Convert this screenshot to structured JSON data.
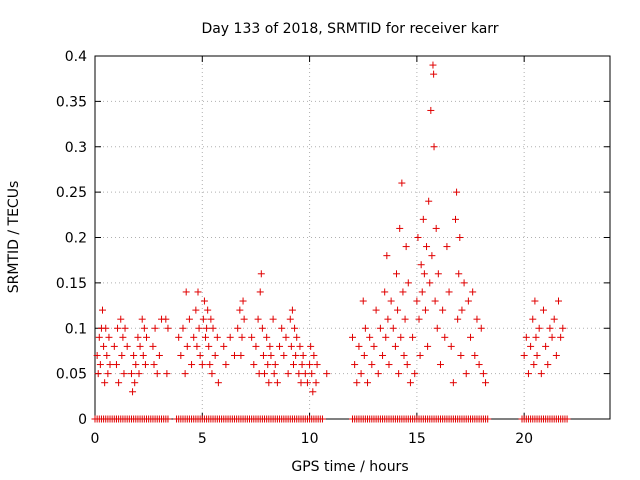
{
  "chart_data": {
    "type": "scatter",
    "title": "Day 133 of 2018, SRMTID for receiver karr",
    "xlabel": "GPS time / hours",
    "ylabel": "SRMTID / TECUs",
    "xlim": [
      0,
      24
    ],
    "ylim": [
      0,
      0.4
    ],
    "x_ticks": [
      0,
      5,
      10,
      15,
      20
    ],
    "x_tick_labels": [
      "0",
      "5",
      "10",
      "15",
      "20"
    ],
    "y_ticks": [
      0,
      0.05,
      0.1,
      0.15,
      0.2,
      0.25,
      0.3,
      0.35,
      0.4
    ],
    "y_tick_labels": [
      "0",
      "0.05",
      "0.1",
      "0.15",
      "0.2",
      "0.25",
      "0.3",
      "0.35",
      "0.4"
    ],
    "grid": true,
    "marker": "+",
    "marker_color": "#e00000",
    "series": [
      {
        "name": "SRMTID",
        "points": [
          [
            0.1,
            0.07
          ],
          [
            0.15,
            0.05
          ],
          [
            0.2,
            0.09
          ],
          [
            0.25,
            0.06
          ],
          [
            0.3,
            0.1
          ],
          [
            0.35,
            0.12
          ],
          [
            0.4,
            0.08
          ],
          [
            0.45,
            0.04
          ],
          [
            0.5,
            0.1
          ],
          [
            0.55,
            0.07
          ],
          [
            0.6,
            0.05
          ],
          [
            0.65,
            0.09
          ],
          [
            0.7,
            0.06
          ],
          [
            0.9,
            0.08
          ],
          [
            1.0,
            0.06
          ],
          [
            1.05,
            0.1
          ],
          [
            1.1,
            0.04
          ],
          [
            1.2,
            0.11
          ],
          [
            1.25,
            0.07
          ],
          [
            1.3,
            0.09
          ],
          [
            1.35,
            0.05
          ],
          [
            1.4,
            0.1
          ],
          [
            1.5,
            0.08
          ],
          [
            1.7,
            0.05
          ],
          [
            1.75,
            0.03
          ],
          [
            1.8,
            0.07
          ],
          [
            1.85,
            0.04
          ],
          [
            1.9,
            0.06
          ],
          [
            2.0,
            0.09
          ],
          [
            2.05,
            0.05
          ],
          [
            2.1,
            0.08
          ],
          [
            2.2,
            0.11
          ],
          [
            2.25,
            0.07
          ],
          [
            2.3,
            0.1
          ],
          [
            2.35,
            0.06
          ],
          [
            2.4,
            0.09
          ],
          [
            2.7,
            0.08
          ],
          [
            2.75,
            0.06
          ],
          [
            2.8,
            0.1
          ],
          [
            2.9,
            0.05
          ],
          [
            3.0,
            0.07
          ],
          [
            3.1,
            0.11
          ],
          [
            3.3,
            0.11
          ],
          [
            3.35,
            0.05
          ],
          [
            3.4,
            0.1
          ],
          [
            3.9,
            0.09
          ],
          [
            4.0,
            0.07
          ],
          [
            4.1,
            0.1
          ],
          [
            4.2,
            0.05
          ],
          [
            4.25,
            0.14
          ],
          [
            4.3,
            0.08
          ],
          [
            4.4,
            0.11
          ],
          [
            4.5,
            0.06
          ],
          [
            4.6,
            0.09
          ],
          [
            4.7,
            0.12
          ],
          [
            4.75,
            0.08
          ],
          [
            4.8,
            0.14
          ],
          [
            4.85,
            0.1
          ],
          [
            4.9,
            0.07
          ],
          [
            5.0,
            0.06
          ],
          [
            5.05,
            0.11
          ],
          [
            5.1,
            0.13
          ],
          [
            5.15,
            0.09
          ],
          [
            5.2,
            0.1
          ],
          [
            5.25,
            0.12
          ],
          [
            5.3,
            0.08
          ],
          [
            5.35,
            0.06
          ],
          [
            5.4,
            0.11
          ],
          [
            5.45,
            0.05
          ],
          [
            5.5,
            0.1
          ],
          [
            5.6,
            0.07
          ],
          [
            5.7,
            0.09
          ],
          [
            5.75,
            0.04
          ],
          [
            6.0,
            0.08
          ],
          [
            6.1,
            0.06
          ],
          [
            6.3,
            0.09
          ],
          [
            6.5,
            0.07
          ],
          [
            6.65,
            0.1
          ],
          [
            6.75,
            0.12
          ],
          [
            6.8,
            0.07
          ],
          [
            6.85,
            0.09
          ],
          [
            6.9,
            0.13
          ],
          [
            6.95,
            0.11
          ],
          [
            7.3,
            0.09
          ],
          [
            7.4,
            0.06
          ],
          [
            7.5,
            0.08
          ],
          [
            7.6,
            0.11
          ],
          [
            7.65,
            0.05
          ],
          [
            7.7,
            0.14
          ],
          [
            7.75,
            0.16
          ],
          [
            7.8,
            0.1
          ],
          [
            7.85,
            0.07
          ],
          [
            7.9,
            0.05
          ],
          [
            8.0,
            0.09
          ],
          [
            8.05,
            0.06
          ],
          [
            8.1,
            0.04
          ],
          [
            8.15,
            0.08
          ],
          [
            8.2,
            0.07
          ],
          [
            8.3,
            0.11
          ],
          [
            8.35,
            0.05
          ],
          [
            8.4,
            0.06
          ],
          [
            8.5,
            0.04
          ],
          [
            8.6,
            0.08
          ],
          [
            8.7,
            0.1
          ],
          [
            8.8,
            0.07
          ],
          [
            8.9,
            0.09
          ],
          [
            9.0,
            0.05
          ],
          [
            9.1,
            0.11
          ],
          [
            9.15,
            0.08
          ],
          [
            9.2,
            0.12
          ],
          [
            9.25,
            0.06
          ],
          [
            9.3,
            0.1
          ],
          [
            9.35,
            0.07
          ],
          [
            9.4,
            0.09
          ],
          [
            9.5,
            0.05
          ],
          [
            9.55,
            0.08
          ],
          [
            9.6,
            0.04
          ],
          [
            9.65,
            0.06
          ],
          [
            9.7,
            0.07
          ],
          [
            9.8,
            0.05
          ],
          [
            9.9,
            0.04
          ],
          [
            10.0,
            0.06
          ],
          [
            10.05,
            0.08
          ],
          [
            10.1,
            0.05
          ],
          [
            10.15,
            0.03
          ],
          [
            10.2,
            0.07
          ],
          [
            10.3,
            0.04
          ],
          [
            10.35,
            0.06
          ],
          [
            10.8,
            0.05
          ],
          [
            12.0,
            0.09
          ],
          [
            12.1,
            0.06
          ],
          [
            12.2,
            0.04
          ],
          [
            12.3,
            0.08
          ],
          [
            12.4,
            0.05
          ],
          [
            12.5,
            0.13
          ],
          [
            12.55,
            0.07
          ],
          [
            12.6,
            0.1
          ],
          [
            12.7,
            0.04
          ],
          [
            12.8,
            0.09
          ],
          [
            12.9,
            0.06
          ],
          [
            13.0,
            0.08
          ],
          [
            13.1,
            0.12
          ],
          [
            13.2,
            0.05
          ],
          [
            13.3,
            0.1
          ],
          [
            13.4,
            0.07
          ],
          [
            13.5,
            0.14
          ],
          [
            13.55,
            0.09
          ],
          [
            13.6,
            0.18
          ],
          [
            13.65,
            0.11
          ],
          [
            13.7,
            0.06
          ],
          [
            13.8,
            0.13
          ],
          [
            13.9,
            0.1
          ],
          [
            14.0,
            0.08
          ],
          [
            14.05,
            0.16
          ],
          [
            14.1,
            0.12
          ],
          [
            14.15,
            0.05
          ],
          [
            14.2,
            0.21
          ],
          [
            14.25,
            0.09
          ],
          [
            14.3,
            0.26
          ],
          [
            14.35,
            0.14
          ],
          [
            14.4,
            0.07
          ],
          [
            14.45,
            0.11
          ],
          [
            14.5,
            0.19
          ],
          [
            14.55,
            0.06
          ],
          [
            14.6,
            0.15
          ],
          [
            14.7,
            0.04
          ],
          [
            14.8,
            0.09
          ],
          [
            14.9,
            0.05
          ],
          [
            15.0,
            0.13
          ],
          [
            15.05,
            0.2
          ],
          [
            15.1,
            0.11
          ],
          [
            15.15,
            0.07
          ],
          [
            15.2,
            0.17
          ],
          [
            15.25,
            0.14
          ],
          [
            15.3,
            0.22
          ],
          [
            15.35,
            0.16
          ],
          [
            15.4,
            0.12
          ],
          [
            15.45,
            0.19
          ],
          [
            15.5,
            0.08
          ],
          [
            15.55,
            0.24
          ],
          [
            15.6,
            0.15
          ],
          [
            15.65,
            0.34
          ],
          [
            15.7,
            0.18
          ],
          [
            15.75,
            0.39
          ],
          [
            15.78,
            0.38
          ],
          [
            15.8,
            0.3
          ],
          [
            15.85,
            0.13
          ],
          [
            15.9,
            0.21
          ],
          [
            15.95,
            0.1
          ],
          [
            16.0,
            0.16
          ],
          [
            16.1,
            0.06
          ],
          [
            16.2,
            0.12
          ],
          [
            16.3,
            0.09
          ],
          [
            16.4,
            0.19
          ],
          [
            16.5,
            0.14
          ],
          [
            16.6,
            0.08
          ],
          [
            16.7,
            0.04
          ],
          [
            16.8,
            0.22
          ],
          [
            16.85,
            0.25
          ],
          [
            16.9,
            0.11
          ],
          [
            16.95,
            0.16
          ],
          [
            17.0,
            0.2
          ],
          [
            17.05,
            0.07
          ],
          [
            17.1,
            0.12
          ],
          [
            17.2,
            0.15
          ],
          [
            17.3,
            0.05
          ],
          [
            17.4,
            0.13
          ],
          [
            17.5,
            0.09
          ],
          [
            17.6,
            0.14
          ],
          [
            17.7,
            0.07
          ],
          [
            17.8,
            0.11
          ],
          [
            17.9,
            0.06
          ],
          [
            18.0,
            0.1
          ],
          [
            18.1,
            0.05
          ],
          [
            18.2,
            0.04
          ],
          [
            20.0,
            0.07
          ],
          [
            20.1,
            0.09
          ],
          [
            20.2,
            0.05
          ],
          [
            20.3,
            0.08
          ],
          [
            20.4,
            0.11
          ],
          [
            20.45,
            0.06
          ],
          [
            20.5,
            0.13
          ],
          [
            20.55,
            0.09
          ],
          [
            20.6,
            0.07
          ],
          [
            20.7,
            0.1
          ],
          [
            20.8,
            0.05
          ],
          [
            20.9,
            0.12
          ],
          [
            21.0,
            0.08
          ],
          [
            21.1,
            0.06
          ],
          [
            21.2,
            0.1
          ],
          [
            21.3,
            0.09
          ],
          [
            21.4,
            0.11
          ],
          [
            21.5,
            0.07
          ],
          [
            21.6,
            0.13
          ],
          [
            21.7,
            0.09
          ],
          [
            21.8,
            0.1
          ]
        ],
        "zero_baseline_segments": [
          [
            0.0,
            1.0
          ],
          [
            1.0,
            2.0
          ],
          [
            2.1,
            3.4
          ],
          [
            3.8,
            10.6
          ],
          [
            12.0,
            18.3
          ],
          [
            19.9,
            22.0
          ]
        ]
      }
    ]
  }
}
